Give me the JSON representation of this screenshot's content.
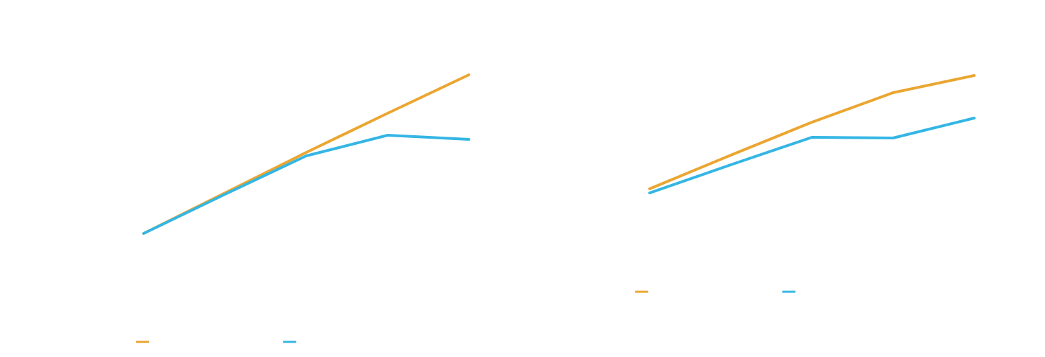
{
  "chart_data": [
    {
      "type": "line",
      "categories": [
        null,
        null,
        null,
        null,
        null
      ],
      "series": [
        {
          "color": "#eaa631",
          "values": [
            25,
            39.75,
            54.5,
            68.75,
            82.75
          ]
        },
        {
          "color": "#34b6e4",
          "values": [
            25,
            39.25,
            53.25,
            60.75,
            59.25
          ]
        }
      ],
      "ylim": [
        0,
        100
      ],
      "legend": "bottom"
    },
    {
      "type": "line",
      "categories": [
        null,
        null,
        null,
        null,
        null
      ],
      "series": [
        {
          "color": "#eaa631",
          "values": [
            41.25,
            53.5,
            65.5,
            76.25,
            82.5
          ]
        },
        {
          "color": "#34b6e4",
          "values": [
            39.75,
            50,
            60,
            59.75,
            67
          ]
        }
      ],
      "ylim": [
        0,
        100
      ],
      "legend": "bottom"
    }
  ]
}
